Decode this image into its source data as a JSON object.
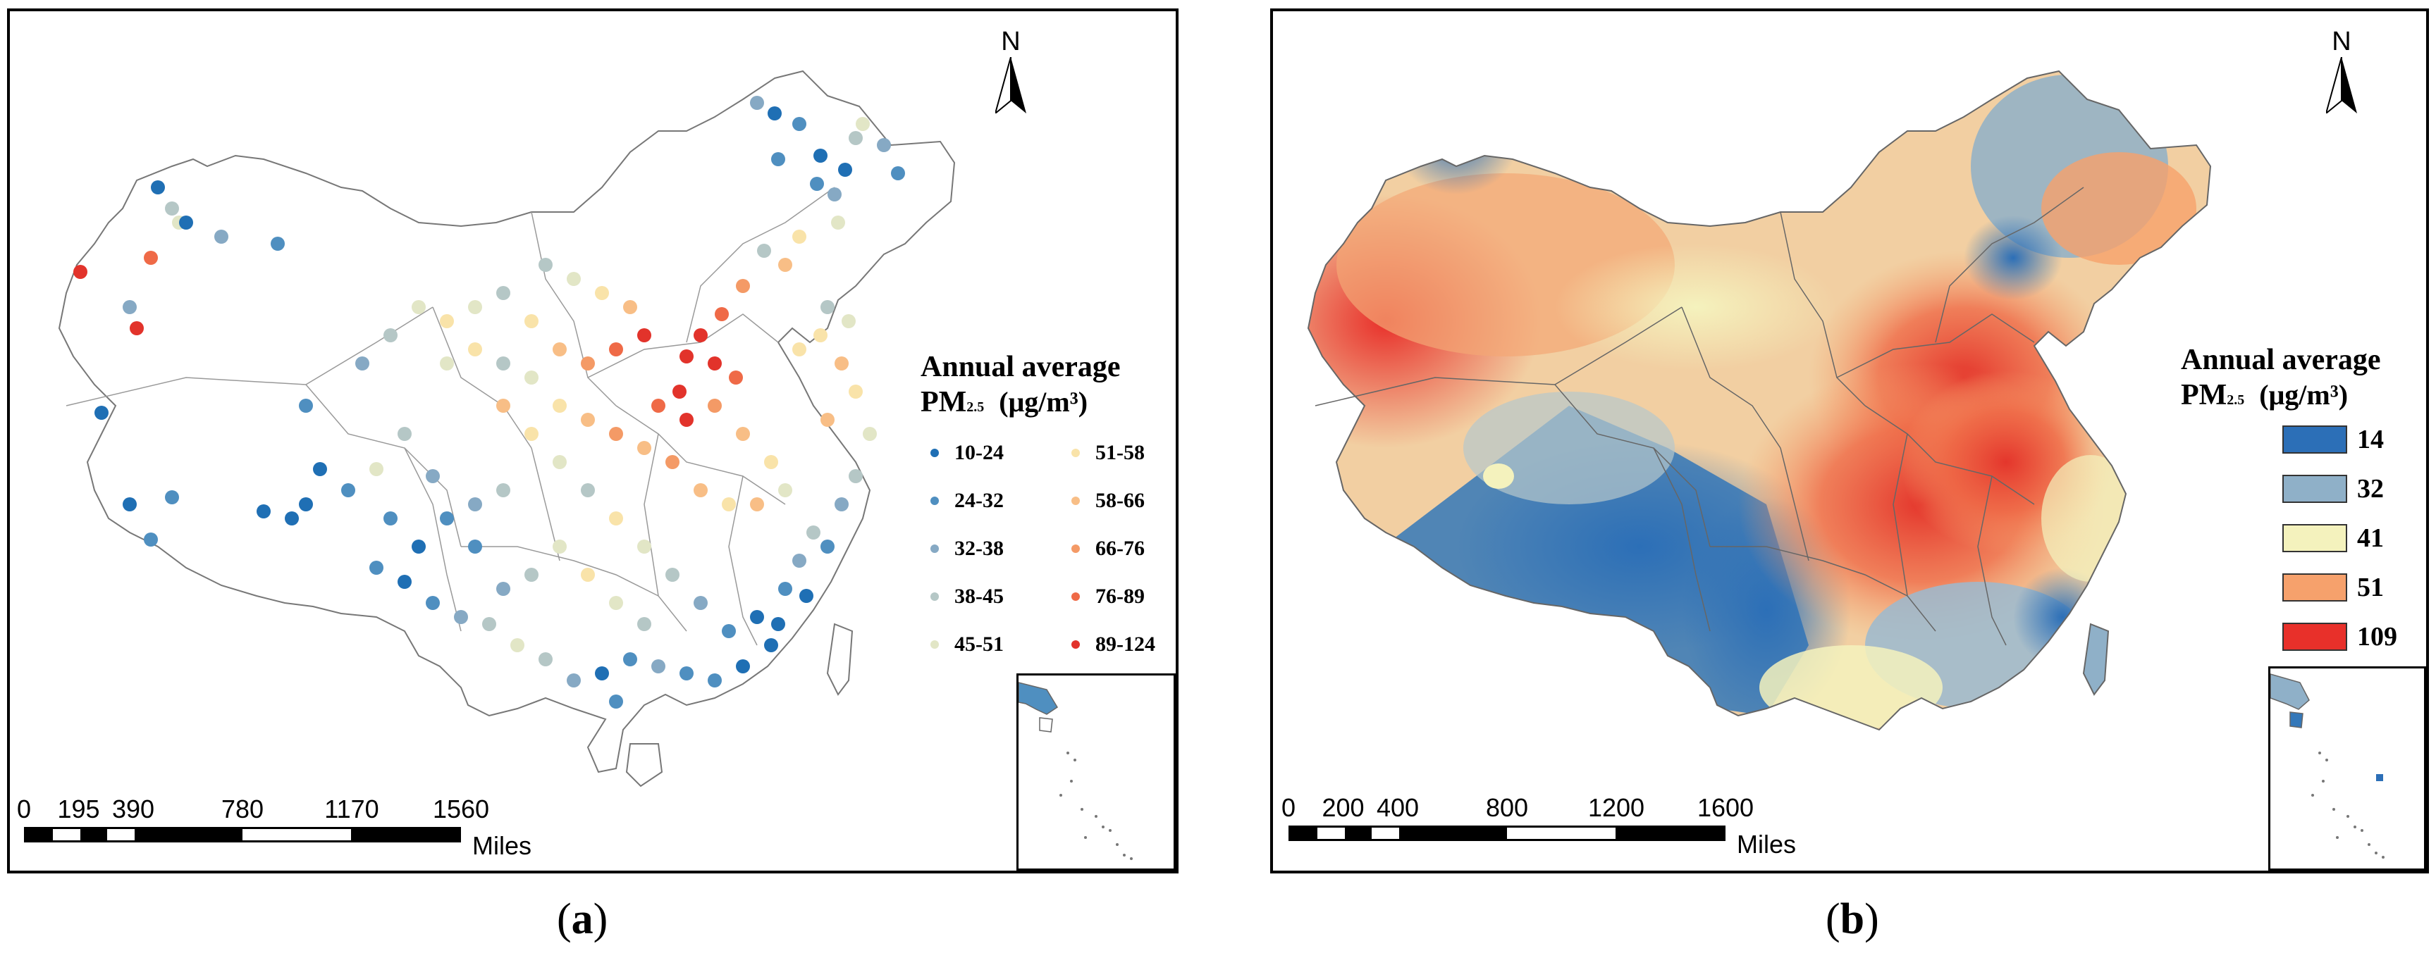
{
  "panel_a": {
    "label": "a",
    "north_label": "N",
    "legend": {
      "title_line1": "Annual average",
      "title_pm": "PM",
      "title_sub": "2.5",
      "title_unit": "(μg/m³)",
      "items": [
        {
          "label": "10-24",
          "color": "#1f6fb4"
        },
        {
          "label": "24-32",
          "color": "#4f8fc0"
        },
        {
          "label": "32-38",
          "color": "#86a9c4"
        },
        {
          "label": "38-45",
          "color": "#b5c7c6"
        },
        {
          "label": "45-51",
          "color": "#e2e6c6"
        },
        {
          "label": "51-58",
          "color": "#f9e3a9"
        },
        {
          "label": "58-66",
          "color": "#f8be86"
        },
        {
          "label": "66-76",
          "color": "#f49a66"
        },
        {
          "label": "76-89",
          "color": "#ef6a47"
        },
        {
          "label": "89-124",
          "color": "#e2332b"
        }
      ]
    },
    "scale": {
      "ticks": [
        "0",
        "195",
        "390",
        "780",
        "1170",
        "1560"
      ],
      "tick_values": [
        0,
        195,
        390,
        780,
        1170,
        1560
      ],
      "units": "Miles"
    }
  },
  "panel_b": {
    "label": "b",
    "north_label": "N",
    "legend": {
      "title_line1": "Annual average",
      "title_pm": "PM",
      "title_sub": "2.5",
      "title_unit": "(μg/m³)",
      "items": [
        {
          "label": "14",
          "color": "#2c6fb7"
        },
        {
          "label": "32",
          "color": "#8fb0c8"
        },
        {
          "label": "41",
          "color": "#f4f2bd"
        },
        {
          "label": "51",
          "color": "#f6a16c"
        },
        {
          "label": "109",
          "color": "#e8302a"
        }
      ]
    },
    "scale": {
      "ticks": [
        "0",
        "200",
        "400",
        "800",
        "1200",
        "1600"
      ],
      "tick_values": [
        0,
        200,
        400,
        800,
        1200,
        1600
      ],
      "units": "Miles"
    }
  }
}
